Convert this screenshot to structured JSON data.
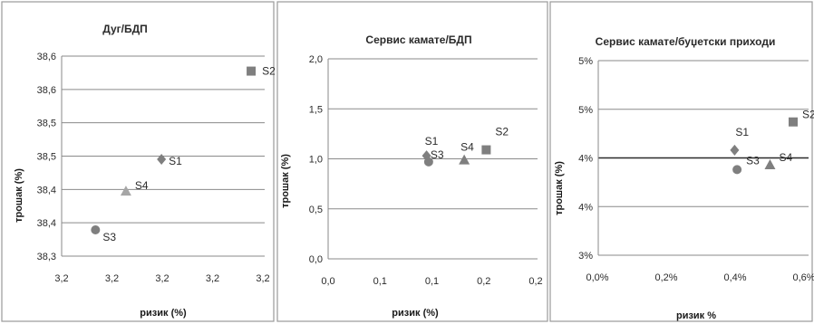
{
  "chart_data": [
    {
      "type": "scatter",
      "title": "Дуг/БДП",
      "xlabel": "ризик (%)",
      "ylabel": "трошак (%)",
      "x_ticks": [
        "3,2",
        "3,2",
        "3,2",
        "3,2",
        "3,2"
      ],
      "y_ticks": [
        "38,3",
        "38,4",
        "38,4",
        "38,5",
        "38,5",
        "38,6",
        "38,6"
      ],
      "xlim": [
        3.15,
        3.27
      ],
      "ylim": [
        38.3,
        38.62
      ],
      "points": [
        {
          "name": "S1",
          "x": 3.209,
          "y": 38.455,
          "color": "#7f7f7f",
          "marker": "diamond"
        },
        {
          "name": "S2",
          "x": 3.262,
          "y": 38.596,
          "color": "#7f7f7f",
          "marker": "square"
        },
        {
          "name": "S3",
          "x": 3.17,
          "y": 38.342,
          "color": "#7f7f7f",
          "marker": "circle"
        },
        {
          "name": "S4",
          "x": 3.188,
          "y": 38.404,
          "color": "#a6a6a6",
          "marker": "triangle"
        }
      ]
    },
    {
      "type": "scatter",
      "title": "Сервис камате/БДП",
      "xlabel": "ризик (%)",
      "ylabel": "трошак (%)",
      "x_ticks": [
        "0,0",
        "0,1",
        "0,1",
        "0,2",
        "0,2"
      ],
      "y_ticks": [
        "0,0",
        "0,5",
        "1,0",
        "1,5",
        "2,0"
      ],
      "xlim": [
        0.0,
        0.2
      ],
      "ylim": [
        0.0,
        2.0
      ],
      "points": [
        {
          "name": "S1",
          "x": 0.094,
          "y": 1.03,
          "color": "#7f7f7f",
          "marker": "diamond"
        },
        {
          "name": "S3",
          "x": 0.096,
          "y": 0.97,
          "color": "#7f7f7f",
          "marker": "circle"
        },
        {
          "name": "S4",
          "x": 0.13,
          "y": 0.99,
          "color": "#7f7f7f",
          "marker": "triangle"
        },
        {
          "name": "S2",
          "x": 0.151,
          "y": 1.09,
          "color": "#7f7f7f",
          "marker": "square"
        }
      ]
    },
    {
      "type": "scatter",
      "title": "Сервис камате/буџетски приходи",
      "xlabel": "ризик %",
      "ylabel": "трошак (%)",
      "x_ticks": [
        "0,0%",
        "0,2%",
        "0,4%",
        "0,6%"
      ],
      "y_ticks": [
        "3%",
        "4%",
        "4%",
        "5%",
        "5%"
      ],
      "xlim": [
        0.0,
        0.6
      ],
      "ylim": [
        3.0,
        5.0
      ],
      "points": [
        {
          "name": "S1",
          "x": 0.389,
          "y": 4.08,
          "color": "#7f7f7f",
          "marker": "diamond"
        },
        {
          "name": "S3",
          "x": 0.396,
          "y": 3.88,
          "color": "#7f7f7f",
          "marker": "circle"
        },
        {
          "name": "S4",
          "x": 0.49,
          "y": 3.93,
          "color": "#7f7f7f",
          "marker": "triangle"
        },
        {
          "name": "S2",
          "x": 0.556,
          "y": 4.37,
          "color": "#7f7f7f",
          "marker": "square"
        }
      ]
    }
  ]
}
